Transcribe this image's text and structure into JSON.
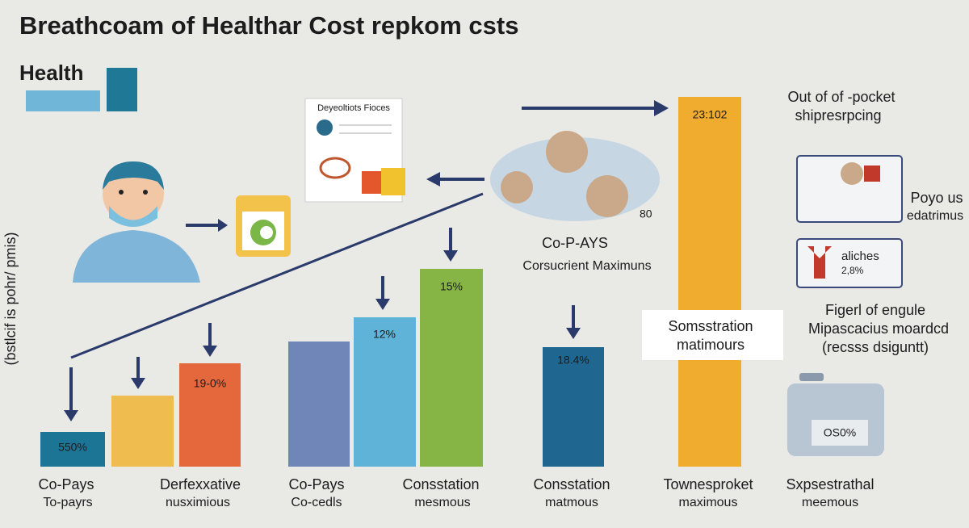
{
  "title": "Breathcoam of Healthar Cost repkom csts",
  "legend": {
    "label": "Health"
  },
  "y_axis_label": "(bstlcif is  pohr/ pmis)",
  "document": {
    "title": "Deyeoltiots Fioces"
  },
  "callouts": {
    "out_of_pocket": [
      "Out of of -pocket",
      "shipresrpcing"
    ],
    "tall_bar_value": "23:102",
    "cloud_number": "80",
    "copays": [
      "Co-P-AYS",
      "Corsucrient Maximuns"
    ],
    "panel_1": [
      "Poyo us",
      "edatrimus"
    ],
    "panel_2": [
      "aliches",
      "2,8%"
    ],
    "figure_note": [
      "Figerl of engule",
      "Mipascacius moardcd",
      "(recsss dsiguntt)"
    ],
    "box_note": [
      "Somsstration",
      "matimours"
    ],
    "device_value": "OS0%"
  },
  "bar_labels": [
    "550%",
    "19-0%",
    "12%",
    "15%",
    "18.4%"
  ],
  "bottom_labels": [
    [
      "Co-Pays",
      "To-payrs"
    ],
    [
      "Derfexxative",
      "nusximious"
    ],
    [
      "Co-Pays",
      "Co-cedls"
    ],
    [
      "Consstation",
      "mesmous"
    ],
    [
      "Consstation",
      "matmous"
    ],
    [
      "Townesproket",
      "maximous"
    ],
    [
      "Sxpsestrathal",
      "meemous"
    ]
  ]
}
